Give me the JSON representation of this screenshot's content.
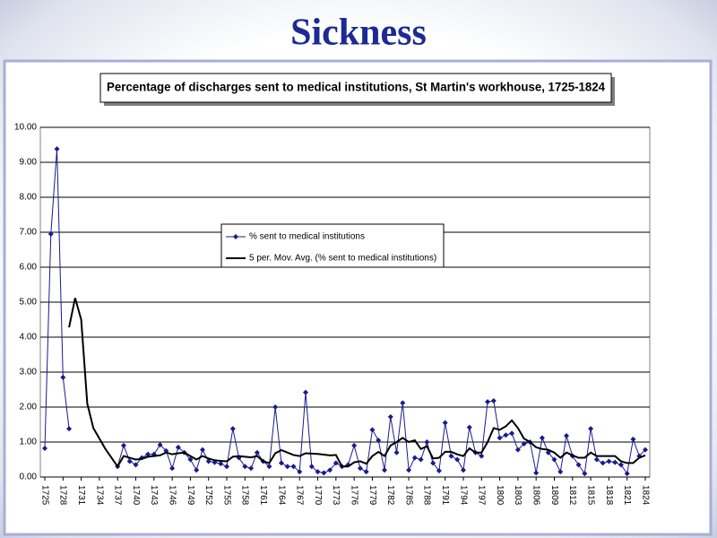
{
  "title": "Sickness",
  "chart_data": {
    "type": "line",
    "title": "Percentage of discharges sent to medical institutions, St Martin's workhouse, 1725-1824",
    "x": [
      1725,
      1726,
      1727,
      1728,
      1729,
      1730,
      1731,
      1732,
      1733,
      1734,
      1735,
      1736,
      1737,
      1738,
      1739,
      1740,
      1741,
      1742,
      1743,
      1744,
      1745,
      1746,
      1747,
      1748,
      1749,
      1750,
      1751,
      1752,
      1753,
      1754,
      1755,
      1756,
      1757,
      1758,
      1759,
      1760,
      1761,
      1762,
      1763,
      1764,
      1765,
      1766,
      1767,
      1768,
      1769,
      1770,
      1771,
      1772,
      1773,
      1774,
      1775,
      1776,
      1777,
      1778,
      1779,
      1780,
      1781,
      1782,
      1783,
      1784,
      1785,
      1786,
      1787,
      1788,
      1789,
      1790,
      1791,
      1792,
      1793,
      1794,
      1795,
      1796,
      1797,
      1798,
      1799,
      1800,
      1801,
      1802,
      1803,
      1804,
      1805,
      1806,
      1807,
      1808,
      1809,
      1810,
      1811,
      1812,
      1813,
      1814,
      1815,
      1816,
      1817,
      1818,
      1819,
      1820,
      1821,
      1822,
      1823,
      1824
    ],
    "xlim": [
      1725,
      1824
    ],
    "xticks": [
      1725,
      1728,
      1731,
      1734,
      1737,
      1740,
      1743,
      1746,
      1749,
      1752,
      1755,
      1758,
      1761,
      1764,
      1767,
      1770,
      1773,
      1776,
      1779,
      1782,
      1785,
      1788,
      1791,
      1794,
      1797,
      1800,
      1803,
      1806,
      1809,
      1812,
      1815,
      1818,
      1821,
      1824
    ],
    "ylim": [
      0,
      10
    ],
    "yticks": [
      {
        "value": 0,
        "label": "0.00"
      },
      {
        "value": 1,
        "label": "1.00"
      },
      {
        "value": 2,
        "label": "2.00"
      },
      {
        "value": 3,
        "label": "3.00"
      },
      {
        "value": 4,
        "label": "4.00"
      },
      {
        "value": 5,
        "label": "5.00"
      },
      {
        "value": 6,
        "label": "6.00"
      },
      {
        "value": 7,
        "label": "7.00"
      },
      {
        "value": 8,
        "label": "8.00"
      },
      {
        "value": 9,
        "label": "9.00"
      },
      {
        "value": 10,
        "label": "10.00"
      }
    ],
    "grid": true,
    "series": [
      {
        "name": "% sent to medical institutions",
        "color": "#1a1a8c",
        "marker": "diamond",
        "values": [
          0.82,
          6.95,
          9.38,
          2.85,
          1.38,
          null,
          null,
          null,
          null,
          null,
          null,
          null,
          0.3,
          0.9,
          0.45,
          0.35,
          0.55,
          0.65,
          0.65,
          0.92,
          0.75,
          0.25,
          0.85,
          0.7,
          0.5,
          0.2,
          0.78,
          0.45,
          0.42,
          0.38,
          0.3,
          1.38,
          0.55,
          0.3,
          0.25,
          0.7,
          0.45,
          0.3,
          2.0,
          0.4,
          0.3,
          0.3,
          0.15,
          2.42,
          0.3,
          0.15,
          0.12,
          0.2,
          0.4,
          0.3,
          0.35,
          0.9,
          0.25,
          0.15,
          1.35,
          1.05,
          0.2,
          1.72,
          0.7,
          2.12,
          0.2,
          0.55,
          0.5,
          1.0,
          0.4,
          0.18,
          1.55,
          0.6,
          0.5,
          0.2,
          1.42,
          0.7,
          0.6,
          2.15,
          2.18,
          1.12,
          1.2,
          1.25,
          0.78,
          0.95,
          1.0,
          0.12,
          1.12,
          0.7,
          0.5,
          0.15,
          1.18,
          0.6,
          0.35,
          0.1,
          1.38,
          0.5,
          0.4,
          0.45,
          0.42,
          0.35,
          0.1,
          1.08,
          0.6,
          0.78
        ]
      },
      {
        "name": "5 per. Mov. Avg. (% sent to medical institutions)",
        "color": "#000000",
        "values": [
          null,
          null,
          null,
          null,
          4.28,
          5.12,
          4.5,
          2.1,
          1.4,
          1.1,
          0.8,
          0.55,
          0.3,
          0.6,
          0.55,
          0.5,
          0.52,
          0.58,
          0.6,
          0.62,
          0.7,
          0.65,
          0.68,
          0.7,
          0.6,
          0.5,
          0.6,
          0.53,
          0.48,
          0.46,
          0.45,
          0.58,
          0.6,
          0.58,
          0.56,
          0.6,
          0.45,
          0.4,
          0.68,
          0.77,
          0.7,
          0.63,
          0.6,
          0.68,
          0.67,
          0.66,
          0.64,
          0.62,
          0.63,
          0.3,
          0.3,
          0.42,
          0.45,
          0.38,
          0.6,
          0.72,
          0.6,
          0.9,
          1.0,
          1.12,
          1.0,
          1.05,
          0.8,
          0.88,
          0.53,
          0.55,
          0.72,
          0.72,
          0.65,
          0.6,
          0.82,
          0.7,
          0.7,
          1.0,
          1.4,
          1.35,
          1.45,
          1.62,
          1.4,
          1.1,
          1.0,
          0.85,
          0.8,
          0.78,
          0.7,
          0.55,
          0.7,
          0.62,
          0.55,
          0.55,
          0.7,
          0.6,
          0.6,
          0.6,
          0.6,
          0.45,
          0.4,
          0.4,
          0.55,
          0.62
        ]
      }
    ]
  }
}
